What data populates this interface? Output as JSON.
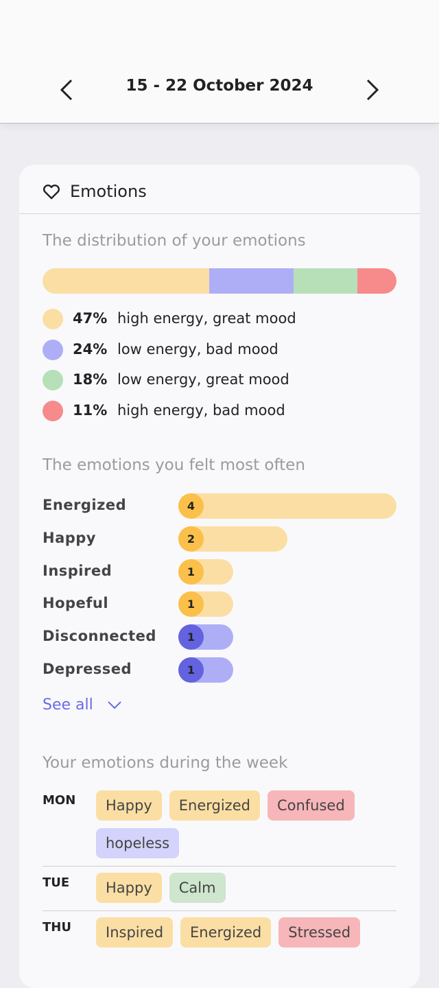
{
  "header": {
    "title": "15 - 22 October 2024"
  },
  "card": {
    "title": "Emotions"
  },
  "distribution": {
    "title": "The distribution of your emotions",
    "items": [
      {
        "value": 47,
        "label": "47%",
        "name": "high energy, great mood",
        "color": "#fbdea3"
      },
      {
        "value": 24,
        "label": "24%",
        "name": "low energy, bad mood",
        "color": "#aeaef6"
      },
      {
        "value": 18,
        "label": "18%",
        "name": "low energy, great mood",
        "color": "#b7e0b9"
      },
      {
        "value": 11,
        "label": "11%",
        "name": "high energy, bad mood",
        "color": "#f78a8a"
      }
    ]
  },
  "frequent": {
    "title": "The emotions you felt most often",
    "items": [
      {
        "name": "Energized",
        "count": 4,
        "color": "#fbdea3",
        "dot": "#fbc04a"
      },
      {
        "name": "Happy",
        "count": 2,
        "color": "#fbdea3",
        "dot": "#fbc04a"
      },
      {
        "name": "Inspired",
        "count": 1,
        "color": "#fbdea3",
        "dot": "#fbc04a"
      },
      {
        "name": "Hopeful",
        "count": 1,
        "color": "#fbdea3",
        "dot": "#fbc04a"
      },
      {
        "name": "Disconnected",
        "count": 1,
        "color": "#aeaef6",
        "dot": "#6363e0"
      },
      {
        "name": "Depressed",
        "count": 1,
        "color": "#aeaef6",
        "dot": "#6363e0"
      }
    ],
    "see_all": "See all"
  },
  "week": {
    "title": "Your emotions during the week",
    "days": [
      {
        "day": "MON",
        "tags": [
          {
            "text": "Happy",
            "color": "#fbdea3"
          },
          {
            "text": "Energized",
            "color": "#fbdea3"
          },
          {
            "text": "Confused",
            "color": "#f7b6b9"
          },
          {
            "text": "hopeless",
            "color": "#d3d3fb"
          }
        ]
      },
      {
        "day": "TUE",
        "tags": [
          {
            "text": "Happy",
            "color": "#fbdea3"
          },
          {
            "text": "Calm",
            "color": "#cde6cd"
          }
        ]
      },
      {
        "day": "THU",
        "tags": [
          {
            "text": "Inspired",
            "color": "#fbdea3"
          },
          {
            "text": "Energized",
            "color": "#fbdea3"
          },
          {
            "text": "Stressed",
            "color": "#f7b6b9"
          }
        ]
      }
    ]
  }
}
